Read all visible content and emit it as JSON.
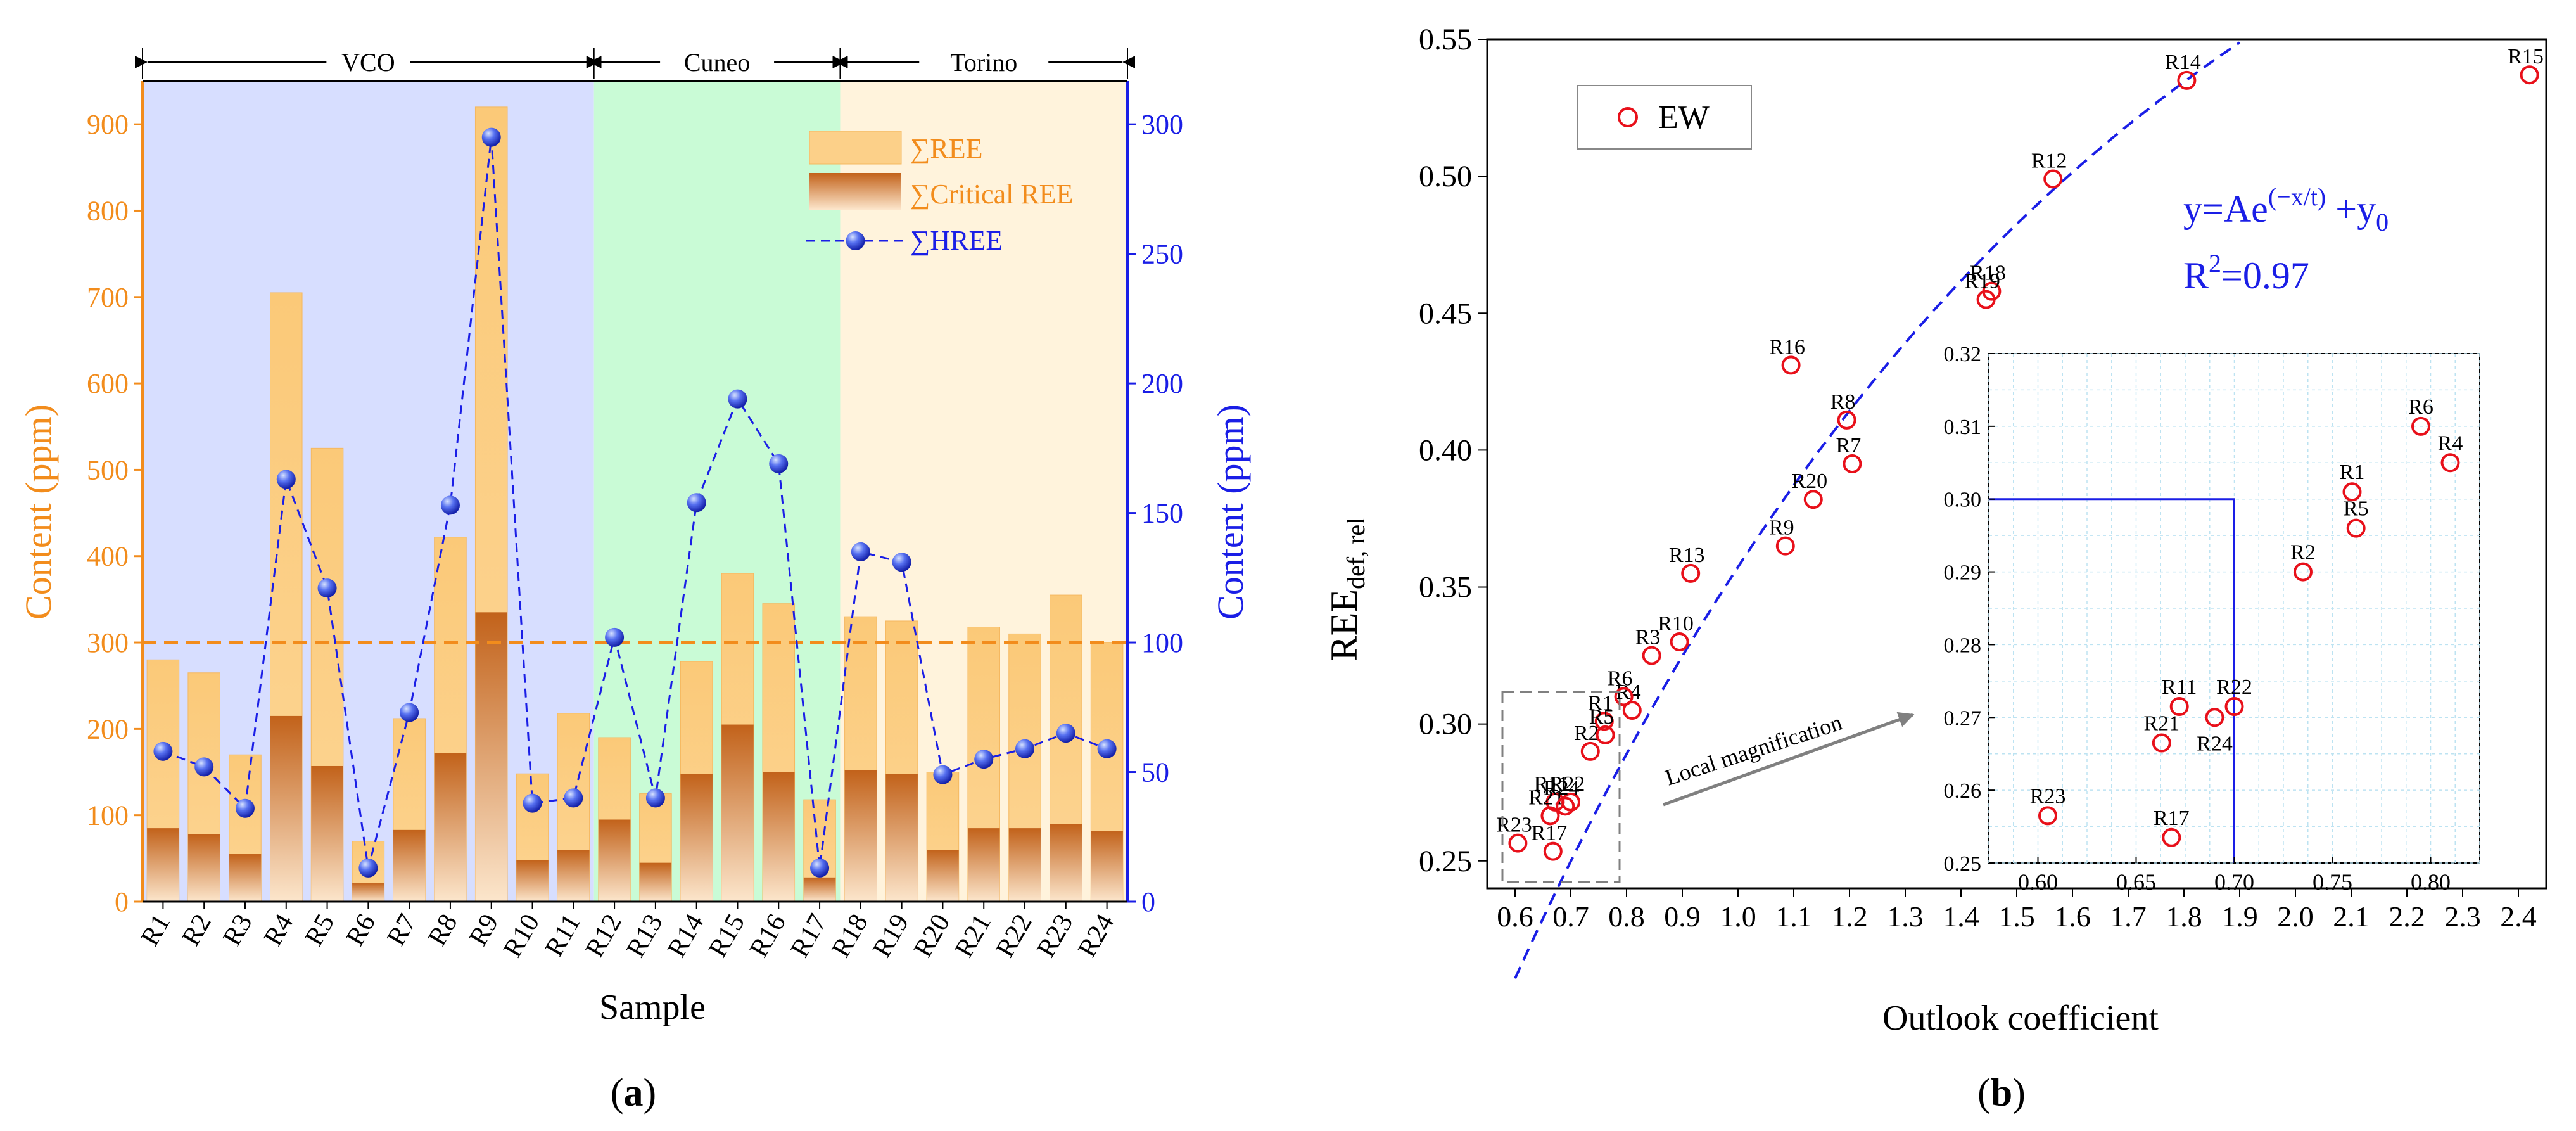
{
  "chart_data": [
    {
      "type": "bar",
      "panel_label": "(a)",
      "xlabel": "Sample",
      "ylabel_left": "Content (ppm)",
      "ylabel_right": "Content (ppm)",
      "ylim_left": [
        0,
        950
      ],
      "ylim_right": [
        0,
        316.67
      ],
      "yticks_left": [
        0,
        100,
        200,
        300,
        400,
        500,
        600,
        700,
        800,
        900
      ],
      "yticks_right": [
        0,
        50,
        100,
        150,
        200,
        250,
        300
      ],
      "categories": [
        "R1",
        "R2",
        "R3",
        "R4",
        "R5",
        "R6",
        "R7",
        "R8",
        "R9",
        "R10",
        "R11",
        "R12",
        "R13",
        "R14",
        "R15",
        "R16",
        "R17",
        "R18",
        "R19",
        "R20",
        "R21",
        "R22",
        "R23",
        "R24"
      ],
      "series": [
        {
          "name": "∑REE",
          "axis": "left",
          "values": [
            280,
            265,
            170,
            705,
            525,
            70,
            212,
            422,
            920,
            148,
            218,
            190,
            125,
            278,
            380,
            345,
            118,
            330,
            325,
            150,
            318,
            310,
            355,
            300
          ]
        },
        {
          "name": "∑Critical REE",
          "axis": "left",
          "values": [
            85,
            78,
            55,
            215,
            157,
            22,
            83,
            172,
            335,
            48,
            60,
            95,
            45,
            148,
            205,
            150,
            28,
            152,
            148,
            60,
            85,
            85,
            90,
            82
          ]
        },
        {
          "name": "∑HREE",
          "axis": "right",
          "values": [
            58,
            52,
            36,
            163,
            121,
            13,
            73,
            153,
            295,
            38,
            40,
            102,
            40,
            154,
            194,
            169,
            13,
            135,
            131,
            49,
            55,
            59,
            65,
            59
          ]
        }
      ],
      "reference_line": {
        "axis": "left",
        "value": 300
      },
      "regions": [
        {
          "label": "VCO",
          "from": "R1",
          "to": "R11",
          "color": "#d7deff"
        },
        {
          "label": "Cuneo",
          "from": "R12",
          "to": "R17",
          "color": "#c9fbd6"
        },
        {
          "label": "Torino",
          "from": "R18",
          "to": "R24",
          "color": "#fff3dc"
        }
      ],
      "legend_position": "top-right",
      "colors": {
        "ree": "#fccf85",
        "critical_top": "#c86a1c",
        "critical_bottom": "#fbe0c0",
        "hree": "#1a1ee6",
        "left_axis": "#f28c1c",
        "right_axis": "#1a1ee6",
        "threshold": "#f28c1c"
      }
    },
    {
      "type": "scatter",
      "panel_label": "(b)",
      "xlabel": "Outlook coefficient",
      "ylabel_main": "REE",
      "ylabel_sub": "def, rel",
      "xlim": [
        0.55,
        2.45
      ],
      "ylim": [
        0.24,
        0.55
      ],
      "xticks": [
        0.6,
        0.7,
        0.8,
        0.9,
        1.0,
        1.1,
        1.2,
        1.3,
        1.4,
        1.5,
        1.6,
        1.7,
        1.8,
        1.9,
        2.0,
        2.1,
        2.2,
        2.3,
        2.4
      ],
      "yticks": [
        0.25,
        0.3,
        0.35,
        0.4,
        0.45,
        0.5,
        0.55
      ],
      "legend": {
        "label": "EW",
        "position": "top-left"
      },
      "equation_text": "y=Ae",
      "equation_exp": "(−x/t)",
      "equation_tail": " +y",
      "equation_sub": "0",
      "r2_text": "R",
      "r2_sup": "2",
      "r2_value": "=0.97",
      "annotation": "Local magnification",
      "points": [
        {
          "label": "R1",
          "x": 0.76,
          "y": 0.301
        },
        {
          "label": "R2",
          "x": 0.735,
          "y": 0.29
        },
        {
          "label": "R3",
          "x": 0.845,
          "y": 0.325
        },
        {
          "label": "R4",
          "x": 0.81,
          "y": 0.305
        },
        {
          "label": "R5",
          "x": 0.762,
          "y": 0.296
        },
        {
          "label": "R6",
          "x": 0.795,
          "y": 0.31
        },
        {
          "label": "R7",
          "x": 1.205,
          "y": 0.395
        },
        {
          "label": "R8",
          "x": 1.195,
          "y": 0.411
        },
        {
          "label": "R9",
          "x": 1.085,
          "y": 0.365
        },
        {
          "label": "R10",
          "x": 0.895,
          "y": 0.33
        },
        {
          "label": "R11",
          "x": 0.672,
          "y": 0.2715
        },
        {
          "label": "R12",
          "x": 1.565,
          "y": 0.499
        },
        {
          "label": "R13",
          "x": 0.915,
          "y": 0.355
        },
        {
          "label": "R14",
          "x": 1.805,
          "y": 0.535
        },
        {
          "label": "R15",
          "x": 2.42,
          "y": 0.537
        },
        {
          "label": "R16",
          "x": 1.095,
          "y": 0.431
        },
        {
          "label": "R17",
          "x": 0.668,
          "y": 0.2535
        },
        {
          "label": "R18",
          "x": 1.455,
          "y": 0.458
        },
        {
          "label": "R19",
          "x": 1.445,
          "y": 0.455
        },
        {
          "label": "R20",
          "x": 1.135,
          "y": 0.382
        },
        {
          "label": "R21",
          "x": 0.663,
          "y": 0.2665
        },
        {
          "label": "R22",
          "x": 0.7,
          "y": 0.2715
        },
        {
          "label": "R23",
          "x": 0.605,
          "y": 0.2565
        },
        {
          "label": "R24",
          "x": 0.69,
          "y": 0.27
        }
      ],
      "fit": {
        "type": "exponential",
        "formula": "y=Ae^(-x/t)+y0",
        "r2": 0.97
      },
      "inset": {
        "xlim": [
          0.575,
          0.825
        ],
        "ylim": [
          0.25,
          0.32
        ],
        "xticks": [
          0.6,
          0.65,
          0.7,
          0.75,
          0.8
        ],
        "yticks": [
          0.25,
          0.26,
          0.27,
          0.28,
          0.29,
          0.3,
          0.31,
          0.32
        ],
        "reference_lines": {
          "x": 0.7,
          "y": 0.3
        }
      },
      "colors": {
        "marker": "#e8101a",
        "fit": "#1a1ee6",
        "annotation_text": "#1a1ee6"
      }
    }
  ]
}
